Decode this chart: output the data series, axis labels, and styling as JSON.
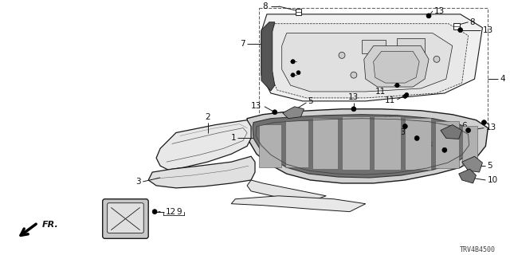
{
  "bg_color": "#ffffff",
  "line_color": "#1a1a1a",
  "text_color": "#111111",
  "diagram_id": "TRV4B4500",
  "fig_width": 6.4,
  "fig_height": 3.2,
  "dpi": 100
}
